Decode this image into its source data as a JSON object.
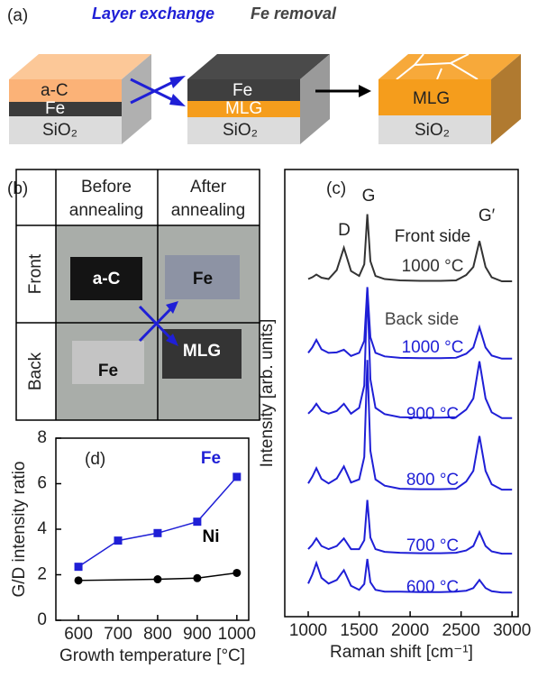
{
  "panel_a": {
    "label": "(a)",
    "step1": "Layer exchange",
    "step2": "Fe removal",
    "stack1": [
      "a-C",
      "Fe",
      "SiO₂"
    ],
    "stack2": [
      "Fe",
      "MLG",
      "SiO₂"
    ],
    "stack3": [
      "MLG",
      "SiO₂"
    ]
  },
  "panel_b": {
    "label": "(b)",
    "columns": [
      [
        "Before",
        "annealing"
      ],
      [
        "After",
        "annealing"
      ]
    ],
    "rows": [
      "Front",
      "Back"
    ],
    "samples": [
      [
        "a-C",
        "Fe"
      ],
      [
        "Fe",
        "MLG"
      ]
    ]
  },
  "chart_data": [
    {
      "type": "line",
      "label": "(d)",
      "xlabel": "Growth temperature [°C]",
      "ylabel": "G/D intensity ratio",
      "xlim": [
        543,
        1030
      ],
      "ylim": [
        0,
        8
      ],
      "xticks": [
        600,
        700,
        800,
        900,
        1000
      ],
      "yticks": [
        0,
        2,
        4,
        6,
        8
      ],
      "series": [
        {
          "name": "Fe",
          "color": "#1f1fd6",
          "marker": "square",
          "x": [
            600,
            700,
            800,
            900,
            1000
          ],
          "values": [
            2.35,
            3.5,
            3.83,
            4.33,
            6.3
          ]
        },
        {
          "name": "Ni",
          "color": "#000000",
          "marker": "circle",
          "x": [
            600,
            800,
            900,
            1000
          ],
          "values": [
            1.75,
            1.8,
            1.85,
            2.08
          ]
        }
      ]
    },
    {
      "type": "line",
      "label": "(c)",
      "xlabel": "Raman shift [cm⁻¹]",
      "ylabel": "Intensity [arb. units]",
      "annotations": [
        "D",
        "G",
        "G′",
        "Front side",
        "Back side"
      ],
      "xlim": [
        770,
        3060
      ],
      "ylim": [
        0,
        100
      ],
      "xticks": [
        1000,
        1500,
        2000,
        2500,
        3000
      ],
      "x": [
        1000,
        1040,
        1080,
        1130,
        1200,
        1280,
        1350,
        1420,
        1500,
        1550,
        1580,
        1610,
        1660,
        1750,
        1900,
        2100,
        2300,
        2450,
        2550,
        2620,
        2680,
        2740,
        2800,
        2900,
        3000
      ],
      "series": [
        {
          "name": "1000 °C",
          "color": "#333333",
          "values": [
            75.5,
            75.9,
            76.5,
            75.8,
            75.5,
            77.5,
            82.5,
            77.3,
            76.2,
            78.8,
            90,
            79.5,
            76.2,
            75.5,
            75.2,
            75.1,
            75.1,
            75.2,
            76.4,
            78.2,
            84,
            78.2,
            75.9,
            75,
            75
          ]
        },
        {
          "name": "1000 °C",
          "color": "#1f1fd6",
          "values": [
            59,
            60.2,
            61.9,
            59.8,
            59,
            59.1,
            59.7,
            58.3,
            59,
            61.7,
            73.7,
            62.5,
            59,
            58.2,
            57.9,
            57.8,
            57.8,
            57.9,
            58.8,
            60.2,
            64.7,
            60.2,
            58.4,
            57.7,
            57.7
          ]
        },
        {
          "name": "900 °C",
          "color": "#1f1fd6",
          "values": [
            45.4,
            46.3,
            47.6,
            46,
            45.4,
            46,
            47.6,
            45.4,
            46.7,
            51.7,
            73.4,
            53.1,
            46.7,
            45.3,
            44.6,
            44.5,
            44.5,
            44.6,
            46.3,
            48.8,
            57.1,
            48.8,
            45.7,
            44.4,
            44.4
          ]
        },
        {
          "name": "800 °C",
          "color": "#1f1fd6",
          "values": [
            29.8,
            31.3,
            33.2,
            30.8,
            29.8,
            30.9,
            33.6,
            30,
            30.7,
            35.7,
            57.4,
            37.1,
            30.7,
            29.3,
            28.6,
            28.5,
            28.5,
            28.6,
            30.2,
            32.6,
            40.4,
            32.6,
            29.6,
            28.4,
            28.4
          ]
        },
        {
          "name": "700 °C",
          "color": "#1f1fd6",
          "values": [
            15.1,
            16.1,
            17.5,
            15.8,
            15.1,
            15.8,
            17.5,
            15.1,
            15.1,
            17.1,
            26.1,
            17.7,
            15.1,
            14.5,
            14.3,
            14.2,
            14.2,
            14.3,
            14.8,
            15.8,
            18.9,
            15.8,
            14.6,
            14.1,
            14.1
          ]
        },
        {
          "name": "600 °C",
          "color": "#1f1fd6",
          "values": [
            7.4,
            9.4,
            12,
            8.7,
            7.4,
            8.2,
            10.4,
            6.9,
            6,
            7.3,
            12.9,
            7.7,
            6,
            5.6,
            5.6,
            5.5,
            5.5,
            5.6,
            5.8,
            6.4,
            8.2,
            6.4,
            5.7,
            5.4,
            5.4
          ]
        }
      ]
    }
  ]
}
